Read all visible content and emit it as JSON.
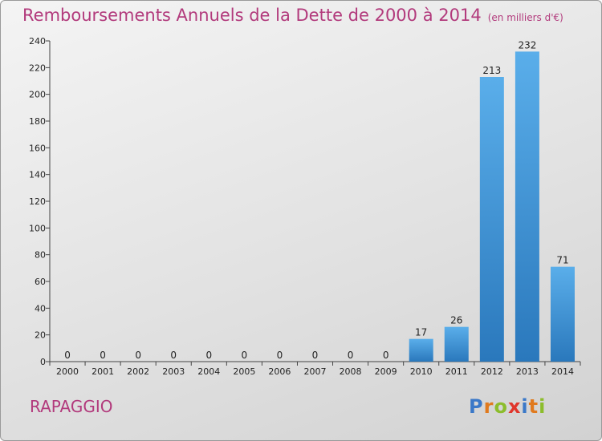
{
  "header": {
    "title": "Remboursements Annuels de la Dette de 2000 à 2014",
    "unit_note": "(en milliers d'€)"
  },
  "commune": "RAPAGGIO",
  "logo": {
    "text": "Proxiti",
    "letters": [
      {
        "ch": "P",
        "color": "#3a78c8"
      },
      {
        "ch": "r",
        "color": "#e07a1e"
      },
      {
        "ch": "o",
        "color": "#8cbd2c"
      },
      {
        "ch": "x",
        "color": "#e0362c"
      },
      {
        "ch": "i",
        "color": "#3a78c8"
      },
      {
        "ch": "t",
        "color": "#e07a1e"
      },
      {
        "ch": "i",
        "color": "#8cbd2c"
      }
    ]
  },
  "colors": {
    "title": "#b23a7c",
    "bar_top": "#5aaeea",
    "bar_bottom": "#2a78bc"
  },
  "chart_data": {
    "type": "bar",
    "title": "Remboursements Annuels de la Dette de 2000 à 2014",
    "categories": [
      "2000",
      "2001",
      "2002",
      "2003",
      "2004",
      "2005",
      "2006",
      "2007",
      "2008",
      "2009",
      "2010",
      "2011",
      "2012",
      "2013",
      "2014"
    ],
    "values": [
      0,
      0,
      0,
      0,
      0,
      0,
      0,
      0,
      0,
      0,
      17,
      26,
      213,
      232,
      71
    ],
    "ylim": [
      0,
      240
    ],
    "yticks": [
      0,
      20,
      40,
      60,
      80,
      100,
      120,
      140,
      160,
      180,
      200,
      220,
      240
    ],
    "grid": false,
    "data_labels": true
  }
}
